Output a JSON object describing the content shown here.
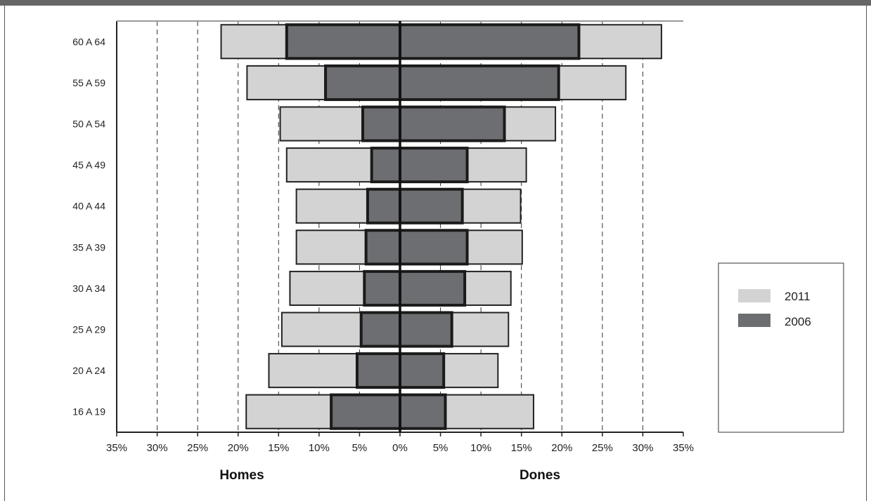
{
  "chart_data": {
    "type": "bar",
    "orientation": "horizontal-diverging",
    "categories": [
      "16 A 19",
      "20 A 24",
      "25 A 29",
      "30 A 34",
      "35 A 39",
      "40 A 44",
      "45 A 49",
      "50 A 54",
      "55 A 59",
      "60 A 64"
    ],
    "x_ticks": [
      -35,
      -30,
      -25,
      -20,
      -15,
      -10,
      -5,
      0,
      5,
      10,
      15,
      20,
      25,
      30,
      35
    ],
    "x_tick_labels": [
      "35%",
      "30%",
      "25%",
      "20%",
      "15%",
      "10%",
      "5%",
      "0%",
      "5%",
      "10%",
      "15%",
      "20%",
      "25%",
      "30%",
      "35%"
    ],
    "xlim": [
      -35,
      35
    ],
    "grid": "vertical dashed",
    "legend_placement": "right",
    "left_title": "Homes",
    "right_title": "Dones",
    "series": [
      {
        "name": "2011",
        "color": "#d3d3d3",
        "homes": [
          19,
          16.2,
          14.6,
          13.6,
          12.8,
          12.8,
          14,
          14.8,
          18.9,
          22.1
        ],
        "dones": [
          16.5,
          12.1,
          13.4,
          13.7,
          15.1,
          14.9,
          15.6,
          19.2,
          27.9,
          32.3
        ]
      },
      {
        "name": "2006",
        "color": "#6d6e71",
        "homes": [
          8.5,
          5.3,
          4.8,
          4.4,
          4.2,
          4,
          3.5,
          4.6,
          9.2,
          14
        ],
        "dones": [
          5.6,
          5.4,
          6.4,
          8,
          8.3,
          7.7,
          8.3,
          12.9,
          19.6,
          22.1
        ]
      }
    ]
  },
  "legend": {
    "items": [
      {
        "label": "2011",
        "color": "#d3d3d3"
      },
      {
        "label": "2006",
        "color": "#6d6e71"
      }
    ]
  }
}
